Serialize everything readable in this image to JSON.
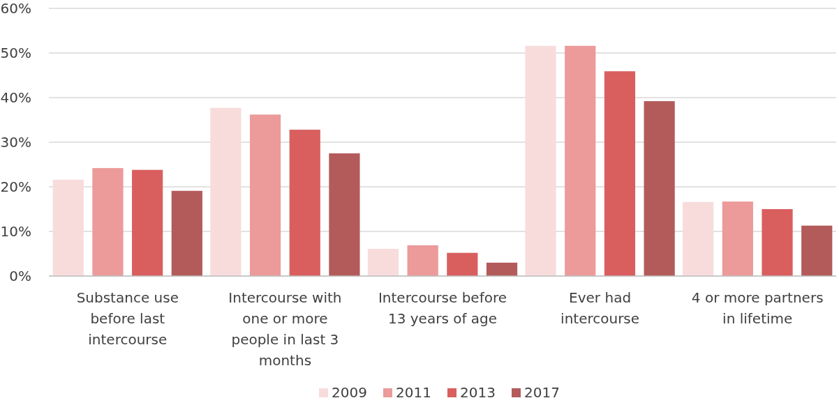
{
  "chart_data": {
    "type": "bar",
    "categories": [
      "Substance use before last intercourse",
      "Intercourse with one or more people in last 3 months",
      "Intercourse before 13 years of age",
      "Ever had intercourse",
      "4 or more partners in lifetime"
    ],
    "series": [
      {
        "name": "2009",
        "color": "#f8dcdc",
        "values": [
          21.6,
          37.7,
          6.1,
          51.6,
          16.6
        ]
      },
      {
        "name": "2011",
        "color": "#ec9a9a",
        "values": [
          24.2,
          36.2,
          6.9,
          51.6,
          16.7
        ]
      },
      {
        "name": "2013",
        "color": "#d95f5f",
        "values": [
          23.8,
          32.8,
          5.2,
          45.9,
          15.0
        ]
      },
      {
        "name": "2017",
        "color": "#b35b5b",
        "values": [
          19.1,
          27.5,
          3.0,
          39.2,
          11.3
        ]
      }
    ],
    "ylim": [
      0,
      60
    ],
    "yticks": [
      {
        "value": 0,
        "label": "0%"
      },
      {
        "value": 10,
        "label": "10%"
      },
      {
        "value": 20,
        "label": "20%"
      },
      {
        "value": 30,
        "label": "30%"
      },
      {
        "value": 40,
        "label": "40%"
      },
      {
        "value": 50,
        "label": "50%"
      },
      {
        "value": 60,
        "label": "60%"
      }
    ],
    "grid": "y",
    "legend": "bottom"
  }
}
